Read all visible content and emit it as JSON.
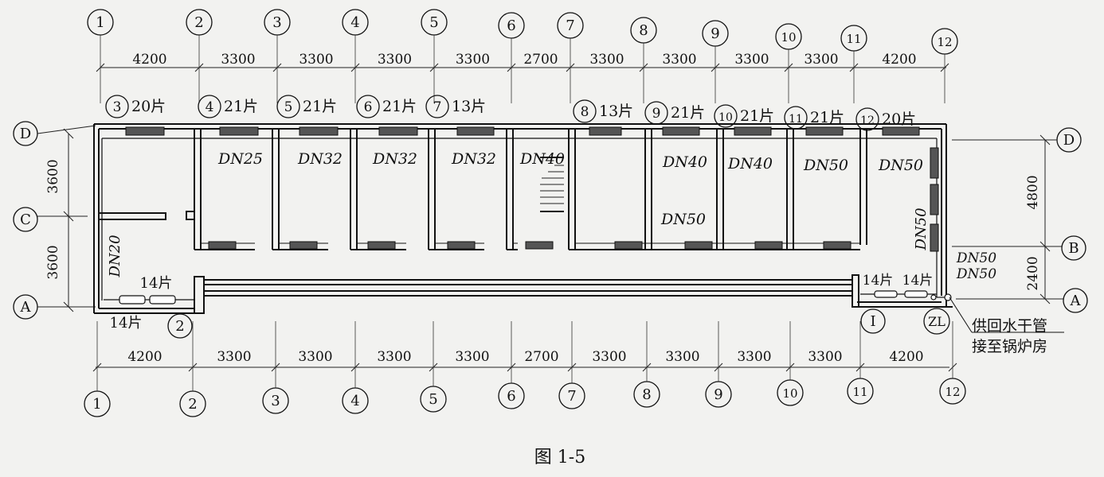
{
  "figure_caption": "图 1-5",
  "axes_top": [
    "1",
    "2",
    "3",
    "4",
    "5",
    "6",
    "7",
    "8",
    "9",
    "10",
    "11",
    "12"
  ],
  "axes_bottom": [
    "1",
    "2",
    "3",
    "4",
    "5",
    "6",
    "7",
    "8",
    "9",
    "10",
    "11",
    "12"
  ],
  "dims_top": [
    "4200",
    "3300",
    "3300",
    "3300",
    "3300",
    "2700",
    "3300",
    "3300",
    "3300",
    "3300",
    "4200"
  ],
  "dims_bottom": [
    "4200",
    "3300",
    "3300",
    "3300",
    "3300",
    "2700",
    "3300",
    "3300",
    "3300",
    "3300",
    "4200"
  ],
  "rows_left": [
    "D",
    "C",
    "A"
  ],
  "rows_right": [
    "D",
    "B",
    "A"
  ],
  "dims_left": [
    "3600",
    "3600"
  ],
  "dims_right": [
    "4800",
    "2400"
  ],
  "radiators_top": [
    {
      "num": "3",
      "count": "20片"
    },
    {
      "num": "4",
      "count": "21片"
    },
    {
      "num": "5",
      "count": "21片"
    },
    {
      "num": "6",
      "count": "21片"
    },
    {
      "num": "7",
      "count": "13片"
    },
    {
      "num": "8",
      "count": "13片"
    },
    {
      "num": "9",
      "count": "21片"
    },
    {
      "num": "10",
      "count": "21片"
    },
    {
      "num": "11",
      "count": "21片"
    },
    {
      "num": "12",
      "count": "20片"
    }
  ],
  "pipe_labels": [
    "DN25",
    "DN32",
    "DN32",
    "DN32",
    "DN40",
    "DN40",
    "DN40",
    "DN50",
    "DN50",
    "DN50",
    "DN50",
    "DN20"
  ],
  "pipe_right": [
    "DN50",
    "DN50"
  ],
  "rad_bottom_left": [
    "14片",
    "14片"
  ],
  "rad_bottom_right": [
    "14片",
    "14片"
  ],
  "marker_bottom_left": "2",
  "marker_bottom_right_1": "I",
  "marker_bottom_right_2": "ZL",
  "note_line1": "供回水干管",
  "note_line2": "接至锅炉房"
}
